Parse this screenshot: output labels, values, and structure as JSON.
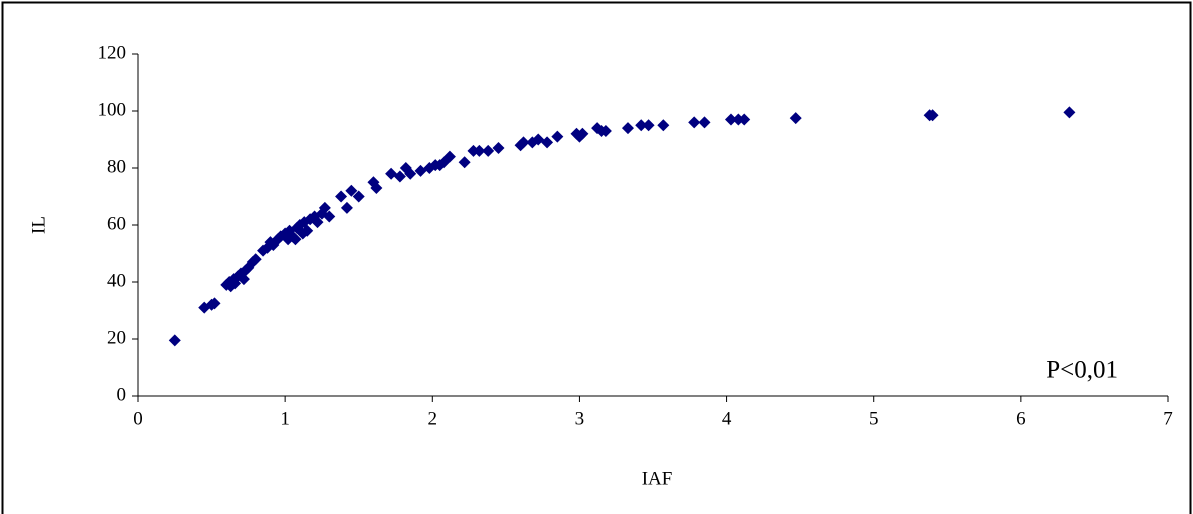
{
  "chart_data": {
    "type": "scatter",
    "x_label": "IAF",
    "y_label": "IL",
    "annotation": "P<0,01",
    "color": "#000080",
    "xlim": [
      0,
      7
    ],
    "ylim": [
      0,
      120
    ],
    "xticks": [
      0,
      1,
      2,
      3,
      4,
      5,
      6,
      7
    ],
    "yticks": [
      0,
      20,
      40,
      60,
      80,
      100,
      120
    ],
    "grid": false,
    "x": [
      0.25,
      0.45,
      0.5,
      0.52,
      0.6,
      0.62,
      0.63,
      0.65,
      0.66,
      0.68,
      0.7,
      0.72,
      0.73,
      0.75,
      0.78,
      0.8,
      0.85,
      0.88,
      0.9,
      0.92,
      0.95,
      0.97,
      1.0,
      1.02,
      1.03,
      1.05,
      1.07,
      1.08,
      1.1,
      1.12,
      1.13,
      1.15,
      1.17,
      1.2,
      1.22,
      1.25,
      1.27,
      1.3,
      1.38,
      1.42,
      1.45,
      1.5,
      1.6,
      1.62,
      1.72,
      1.78,
      1.82,
      1.85,
      1.92,
      1.98,
      2.02,
      2.05,
      2.08,
      2.12,
      2.22,
      2.28,
      2.32,
      2.38,
      2.45,
      2.6,
      2.62,
      2.68,
      2.72,
      2.78,
      2.85,
      2.98,
      3.0,
      3.02,
      3.12,
      3.15,
      3.18,
      3.33,
      3.42,
      3.47,
      3.57,
      3.78,
      3.85,
      4.03,
      4.08,
      4.12,
      4.47,
      5.38,
      5.4,
      6.33
    ],
    "y": [
      19.5,
      31,
      32,
      32.5,
      39,
      40,
      38.5,
      41,
      39.5,
      42,
      43,
      41,
      44,
      45,
      47,
      48,
      51,
      52,
      54,
      53,
      55,
      56,
      57,
      55,
      58,
      56,
      55,
      59,
      60,
      57,
      61,
      58,
      62,
      63,
      61,
      64,
      66,
      63,
      70,
      66,
      72,
      70,
      75,
      73,
      78,
      77,
      80,
      78,
      79,
      80,
      81,
      81,
      82,
      84,
      82,
      86,
      86,
      86,
      87,
      88,
      89,
      89,
      90,
      89,
      91,
      92,
      91,
      92,
      94,
      93,
      93,
      94,
      95,
      95,
      95,
      96,
      96,
      97,
      97,
      97,
      97.5,
      98.5,
      98.5,
      99.5
    ]
  }
}
